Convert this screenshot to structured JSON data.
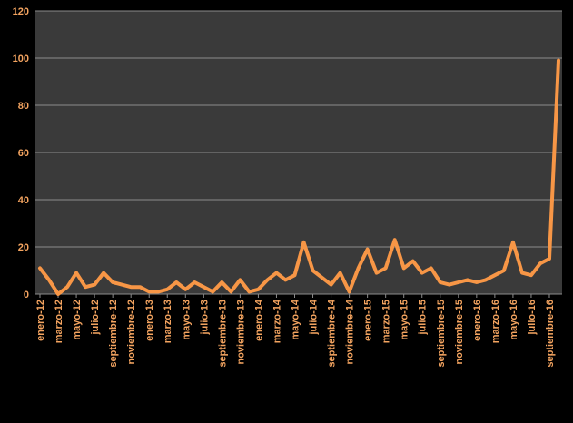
{
  "colors": {
    "background": "#000000",
    "plot_area": "#3a3a3a",
    "gridline": "#8c8c8c",
    "line": "#f79646",
    "tick_label": "#f4a460"
  },
  "chart_data": {
    "type": "line",
    "title": "",
    "xlabel": "",
    "ylabel": "",
    "ylim": [
      0,
      120
    ],
    "yticks": [
      0,
      20,
      40,
      60,
      80,
      100,
      120
    ],
    "grid": true,
    "legend": "none",
    "x": [
      "enero-12",
      "febrero-12",
      "marzo-12",
      "abril-12",
      "mayo-12",
      "junio-12",
      "julio-12",
      "agosto-12",
      "septiembre-12",
      "octubre-12",
      "noviembre-12",
      "diciembre-12",
      "enero-13",
      "febrero-13",
      "marzo-13",
      "abril-13",
      "mayo-13",
      "junio-13",
      "julio-13",
      "agosto-13",
      "septiembre-13",
      "octubre-13",
      "noviembre-13",
      "diciembre-13",
      "enero-14",
      "febrero-14",
      "marzo-14",
      "abril-14",
      "mayo-14",
      "junio-14",
      "julio-14",
      "agosto-14",
      "septiembre-14",
      "octubre-14",
      "noviembre-14",
      "diciembre-14",
      "enero-15",
      "febrero-15",
      "marzo-15",
      "abril-15",
      "mayo-15",
      "junio-15",
      "julio-15",
      "agosto-15",
      "septiembre-15",
      "octubre-15",
      "noviembre-15",
      "diciembre-15",
      "enero-16",
      "febrero-16",
      "marzo-16",
      "abril-16",
      "mayo-16",
      "junio-16",
      "julio-16",
      "agosto-16",
      "septiembre-16",
      "octubre-16"
    ],
    "tick_labels": [
      "enero-12",
      "marzo-12",
      "mayo-12",
      "julio-12",
      "septiembre-12",
      "noviembre-12",
      "enero-13",
      "marzo-13",
      "mayo-13",
      "julio-13",
      "septiembre-13",
      "noviembre-13",
      "enero-14",
      "marzo-14",
      "mayo-14",
      "julio-14",
      "septiembre-14",
      "noviembre-14",
      "enero-15",
      "marzo-15",
      "mayo-15",
      "julio-15",
      "septiembre-15",
      "noviembre-15",
      "enero-16",
      "marzo-16",
      "mayo-16",
      "julio-16",
      "septiembre-16"
    ],
    "series": [
      {
        "values": [
          11,
          6,
          0,
          3,
          9,
          3,
          4,
          9,
          5,
          4,
          3,
          3,
          1,
          1,
          2,
          5,
          2,
          5,
          3,
          1,
          5,
          1,
          6,
          1,
          2,
          6,
          9,
          6,
          8,
          22,
          10,
          7,
          4,
          9,
          1,
          11,
          19,
          9,
          11,
          23,
          11,
          14,
          9,
          11,
          5,
          4,
          5,
          6,
          5,
          6,
          8,
          10,
          22,
          9,
          8,
          13,
          15,
          99
        ]
      }
    ]
  }
}
